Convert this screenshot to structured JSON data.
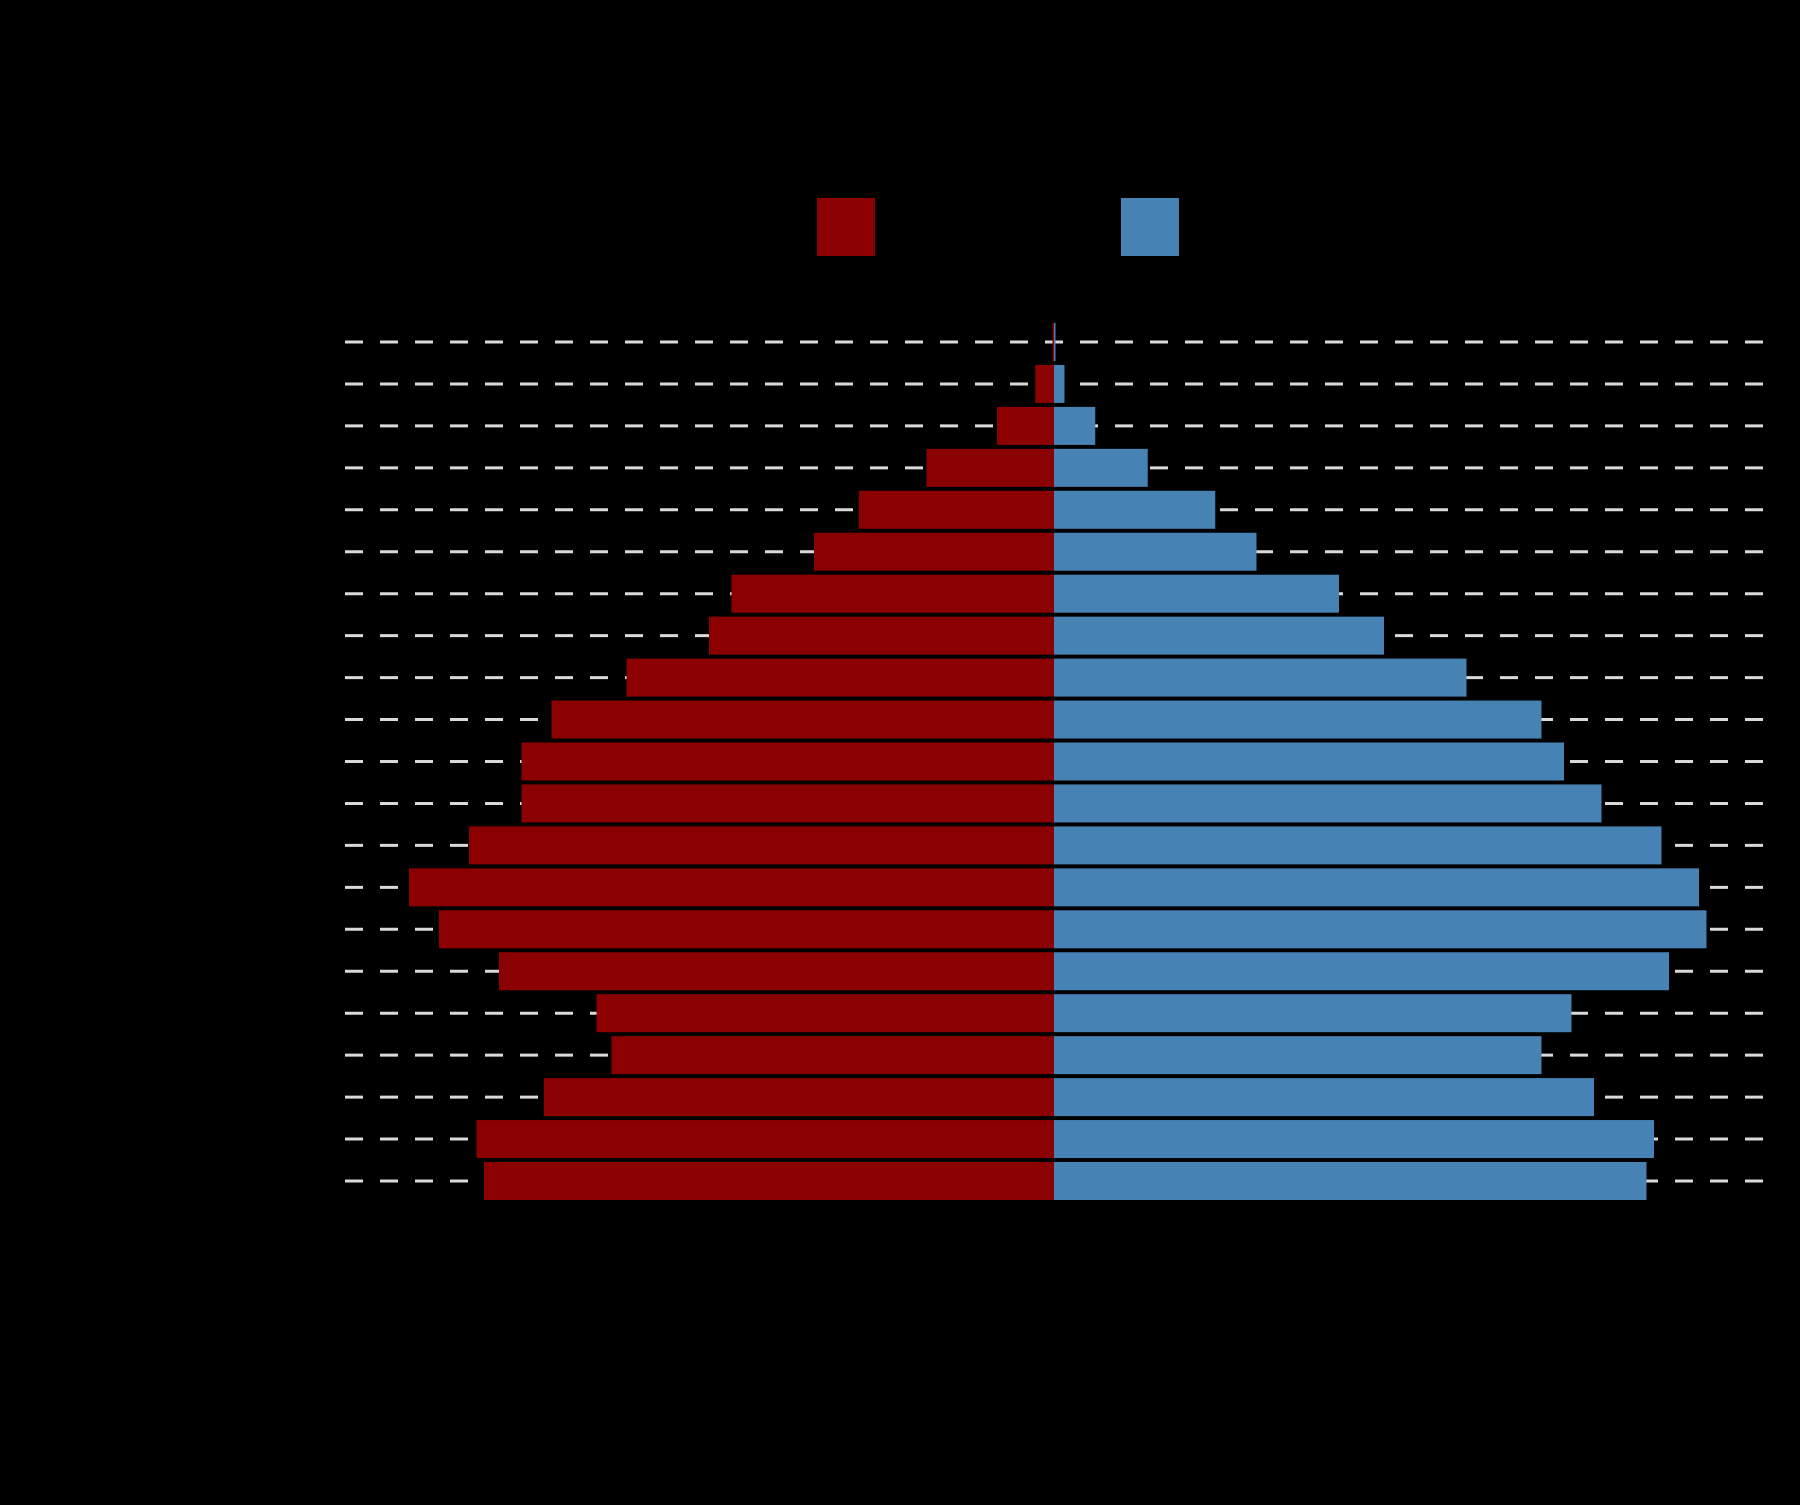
{
  "chart_data": {
    "type": "bar",
    "orientation": "horizontal",
    "layout": "population-pyramid",
    "background": "#000000",
    "grid": {
      "visible": true,
      "style": "dashed",
      "color": "#d9d9d9",
      "axis": "y"
    },
    "legend": {
      "placement": "top-center",
      "entries": [
        {
          "series": 0,
          "color": "#8b0000"
        },
        {
          "series": 1,
          "color": "#4682b4"
        }
      ]
    },
    "categories_count": 21,
    "xlim": [
      -1.0,
      1.0
    ],
    "series": [
      {
        "side": "left",
        "color": "#8b0000",
        "values": [
          0.76,
          0.77,
          0.68,
          0.59,
          0.61,
          0.74,
          0.82,
          0.86,
          0.78,
          0.71,
          0.71,
          0.67,
          0.57,
          0.46,
          0.43,
          0.32,
          0.26,
          0.17,
          0.076,
          0.025,
          0.002
        ]
      },
      {
        "side": "right",
        "color": "#4682b4",
        "values": [
          0.79,
          0.8,
          0.72,
          0.65,
          0.69,
          0.82,
          0.87,
          0.86,
          0.81,
          0.73,
          0.68,
          0.65,
          0.55,
          0.44,
          0.38,
          0.27,
          0.215,
          0.125,
          0.055,
          0.014,
          0.001
        ]
      }
    ]
  }
}
